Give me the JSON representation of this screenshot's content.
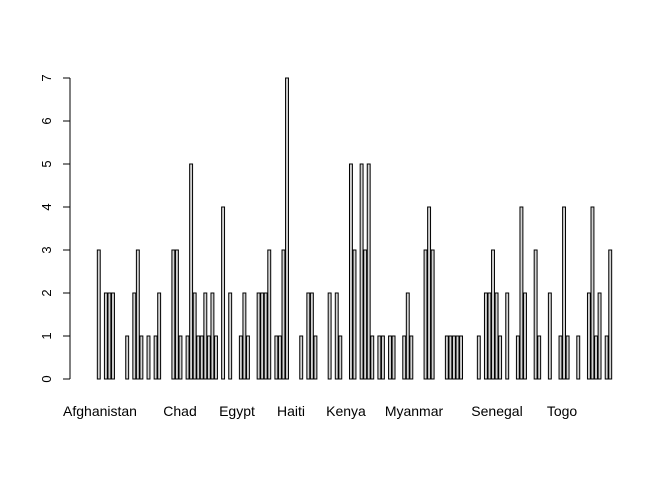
{
  "chart_data": {
    "type": "bar",
    "title": "",
    "xlabel": "",
    "ylabel": "",
    "ylim": [
      0,
      7
    ],
    "y_ticks": [
      0,
      1,
      2,
      3,
      4,
      5,
      6,
      7
    ],
    "x_tick_labels": [
      "Afghanistan",
      "Chad",
      "Egypt",
      "Haiti",
      "Kenya",
      "Myanmar",
      "Senegal",
      "Togo"
    ],
    "values": [
      3,
      0,
      2,
      2,
      2,
      0,
      0,
      0,
      1,
      0,
      2,
      3,
      1,
      0,
      1,
      0,
      1,
      2,
      0,
      0,
      0,
      3,
      3,
      1,
      0,
      1,
      5,
      2,
      1,
      1,
      2,
      1,
      2,
      1,
      0,
      4,
      0,
      2,
      0,
      0,
      1,
      2,
      1,
      0,
      0,
      2,
      2,
      2,
      3,
      0,
      1,
      1,
      3,
      7,
      0,
      0,
      0,
      1,
      0,
      2,
      2,
      1,
      0,
      0,
      0,
      2,
      0,
      2,
      1,
      0,
      0,
      5,
      3,
      0,
      5,
      3,
      5,
      1,
      0,
      1,
      1,
      0,
      1,
      1,
      0,
      0,
      1,
      2,
      1,
      0,
      0,
      0,
      3,
      4,
      3,
      0,
      0,
      0,
      1,
      1,
      1,
      1,
      1,
      0,
      0,
      0,
      0,
      1,
      0,
      2,
      2,
      3,
      2,
      1,
      0,
      2,
      0,
      0,
      1,
      4,
      2,
      0,
      0,
      3,
      1,
      0,
      0,
      2,
      0,
      0,
      1,
      4,
      1,
      0,
      0,
      1,
      0,
      0,
      2,
      4,
      1,
      2,
      0,
      1,
      3
    ],
    "grid": false,
    "legend": "none"
  }
}
